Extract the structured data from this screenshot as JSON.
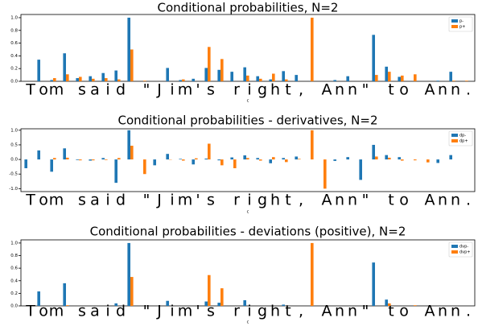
{
  "chart_data": [
    {
      "type": "bar",
      "title": "Conditional probabilities, N=2",
      "x_label": "c",
      "categories": [
        "T",
        "o",
        "m",
        null,
        "s",
        "a",
        "i",
        "d",
        null,
        "\"",
        "J",
        "i",
        "m",
        "'",
        "s",
        null,
        "r",
        "i",
        "g",
        "h",
        "t",
        ",",
        null,
        "A",
        "n",
        "n",
        "\"",
        null,
        "t",
        "o",
        null,
        "A",
        "n",
        "n",
        "."
      ],
      "series": [
        {
          "name": "p-",
          "color": "#1f77b4",
          "values": [
            0,
            0.34,
            0.02,
            0.44,
            0.05,
            0.08,
            0.13,
            0.17,
            1.0,
            0,
            0,
            0.21,
            0.02,
            0.04,
            0.21,
            0.18,
            0.15,
            0.22,
            0.08,
            0.03,
            0.16,
            0.1,
            0,
            0,
            0.02,
            0.08,
            0,
            0.73,
            0.23,
            0.07,
            0,
            0,
            0.01,
            0.15,
            0
          ]
        },
        {
          "name": "p+",
          "color": "#ff7f0e",
          "values": [
            0,
            0,
            0.05,
            0.11,
            0.07,
            0.04,
            0.05,
            0.03,
            0.5,
            0.01,
            0,
            0,
            0.03,
            0,
            0.54,
            0.35,
            0,
            0.09,
            0.04,
            0.12,
            0.03,
            0,
            1.0,
            0,
            0,
            0,
            0,
            0.1,
            0.15,
            0.09,
            0.11,
            0,
            0,
            0.01,
            0.01
          ]
        }
      ],
      "ylim": [
        0,
        1.05
      ],
      "yticks": [
        {
          "value": 0,
          "label": "0.0"
        },
        {
          "value": 0.2,
          "label": "0.2"
        },
        {
          "value": 0.4,
          "label": "0.4"
        },
        {
          "value": 0.6,
          "label": "0.6"
        },
        {
          "value": 0.8,
          "label": "0.8"
        },
        {
          "value": 1.0,
          "label": "1.0"
        }
      ],
      "legend": "upper right"
    },
    {
      "type": "bar",
      "title": "Conditional probabilities - derivatives, N=2",
      "x_label": "c",
      "categories": [
        "T",
        "o",
        "m",
        null,
        "s",
        "a",
        "i",
        "d",
        null,
        "\"",
        "J",
        "i",
        "m",
        "'",
        "s",
        null,
        "r",
        "i",
        "g",
        "h",
        "t",
        ",",
        null,
        "A",
        "n",
        "n",
        "\"",
        null,
        "t",
        "o",
        null,
        "A",
        "n",
        "n",
        "."
      ],
      "series": [
        {
          "name": "dp-",
          "color": "#1f77b4",
          "values": [
            -0.3,
            0.31,
            -0.42,
            0.38,
            -0.02,
            -0.04,
            0.05,
            -0.8,
            1.0,
            0,
            -0.2,
            0.19,
            0.02,
            -0.17,
            0.03,
            -0.03,
            0.07,
            0.14,
            0.05,
            -0.13,
            0.05,
            0.1,
            0,
            0,
            -0.05,
            0.08,
            -0.7,
            0.5,
            0.15,
            0.08,
            0,
            0,
            -0.12,
            0.15,
            0
          ]
        },
        {
          "name": "dp+",
          "color": "#ff7f0e",
          "values": [
            0,
            0,
            0.05,
            0.06,
            -0.03,
            -0.03,
            -0.02,
            0.05,
            0.47,
            -0.5,
            0,
            -0.01,
            -0.04,
            0.04,
            0.54,
            -0.2,
            -0.3,
            0.05,
            -0.04,
            0.08,
            -0.09,
            0.02,
            1.0,
            -1.0,
            0,
            0,
            0,
            0.1,
            0.06,
            -0.04,
            -0.03,
            -0.1,
            0,
            0,
            0
          ]
        }
      ],
      "ylim": [
        -1.1,
        1.05
      ],
      "yticks": [
        {
          "value": -1,
          "label": "-1.0"
        },
        {
          "value": -0.5,
          "label": "-0.5"
        },
        {
          "value": 0,
          "label": "0.0"
        },
        {
          "value": 0.5,
          "label": "0.5"
        },
        {
          "value": 1.0,
          "label": "1.0"
        }
      ],
      "legend": "upper right"
    },
    {
      "type": "bar",
      "title": "Conditional probabilities - deviations (positive), N=2",
      "x_label": "c",
      "categories": [
        "T",
        "o",
        "m",
        null,
        "s",
        "a",
        "i",
        "d",
        null,
        "\"",
        "J",
        "i",
        "m",
        "'",
        "s",
        null,
        "r",
        "i",
        "g",
        "h",
        "t",
        ",",
        null,
        "A",
        "n",
        "n",
        "\"",
        null,
        "t",
        "o",
        null,
        "A",
        "n",
        "n",
        "."
      ],
      "series": [
        {
          "name": "dvp-",
          "color": "#1f77b4",
          "values": [
            0,
            0.23,
            0,
            0.36,
            0,
            0,
            0,
            0.04,
            1.0,
            0,
            0,
            0.08,
            0,
            0,
            0.07,
            0.05,
            0,
            0.09,
            0,
            0,
            0.02,
            0,
            0,
            0,
            0,
            0,
            0,
            0.69,
            0.1,
            0,
            0,
            0,
            0,
            0,
            0
          ]
        },
        {
          "name": "dvp+",
          "color": "#ff7f0e",
          "values": [
            0,
            0,
            0,
            0.01,
            0,
            0,
            0,
            0,
            0.46,
            0,
            0,
            0,
            0,
            0,
            0.49,
            0.28,
            0,
            0,
            0,
            0,
            0,
            0,
            1.0,
            0,
            0,
            0,
            0,
            0,
            0.04,
            0,
            0.01,
            0,
            0,
            0,
            0
          ]
        }
      ],
      "ylim": [
        0,
        1.05
      ],
      "yticks": [
        {
          "value": 0,
          "label": "0.0"
        },
        {
          "value": 0.2,
          "label": "0.2"
        },
        {
          "value": 0.4,
          "label": "0.4"
        },
        {
          "value": 0.6,
          "label": "0.6"
        },
        {
          "value": 0.8,
          "label": "0.8"
        },
        {
          "value": 1.0,
          "label": "1.0"
        }
      ],
      "legend": "upper right"
    }
  ]
}
